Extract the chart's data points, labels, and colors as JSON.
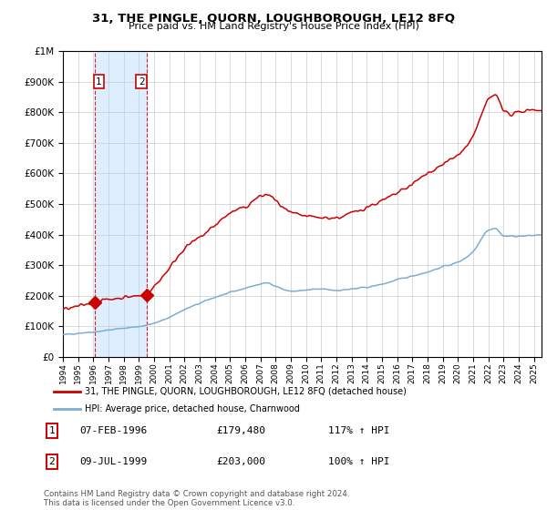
{
  "title": "31, THE PINGLE, QUORN, LOUGHBOROUGH, LE12 8FQ",
  "subtitle": "Price paid vs. HM Land Registry's House Price Index (HPI)",
  "legend_line1": "31, THE PINGLE, QUORN, LOUGHBOROUGH, LE12 8FQ (detached house)",
  "legend_line2": "HPI: Average price, detached house, Charnwood",
  "sale1_date": "07-FEB-1996",
  "sale1_price": 179480,
  "sale1_hpi": "117% ↑ HPI",
  "sale2_date": "09-JUL-1999",
  "sale2_price": 203000,
  "sale2_hpi": "100% ↑ HPI",
  "sale1_x": 1996.09,
  "sale2_x": 1999.52,
  "red_color": "#cc0000",
  "blue_color": "#7aadd4",
  "shade_color": "#ddeeff",
  "grid_color": "#cccccc",
  "bg_color": "#ffffff",
  "ylim": [
    0,
    1000000
  ],
  "xlim": [
    1994.0,
    2025.5
  ],
  "footer": "Contains HM Land Registry data © Crown copyright and database right 2024.\nThis data is licensed under the Open Government Licence v3.0.",
  "blue_pts_x": [
    1994,
    1995,
    1996,
    1997,
    1998,
    1999,
    2000,
    2001,
    2002,
    2003,
    2004,
    2005,
    2006,
    2007,
    2007.5,
    2008,
    2009,
    2010,
    2011,
    2012,
    2013,
    2014,
    2015,
    2016,
    2017,
    2018,
    2019,
    2020,
    2021,
    2022,
    2022.5,
    2023,
    2024,
    2025.5
  ],
  "blue_pts_y": [
    72000,
    78000,
    82000,
    88000,
    94000,
    100000,
    110000,
    130000,
    155000,
    175000,
    195000,
    210000,
    225000,
    238000,
    242000,
    232000,
    215000,
    218000,
    222000,
    218000,
    222000,
    228000,
    238000,
    252000,
    265000,
    278000,
    295000,
    310000,
    345000,
    415000,
    420000,
    395000,
    395000,
    400000
  ],
  "red_pts_x": [
    1994,
    1995,
    1996.09,
    1997,
    1998,
    1999,
    1999.52,
    2000,
    2001,
    2002,
    2003,
    2004,
    2005,
    2006,
    2007,
    2007.5,
    2008,
    2009,
    2010,
    2011,
    2012,
    2013,
    2014,
    2015,
    2016,
    2017,
    2018,
    2019,
    2020,
    2021,
    2022,
    2022.5,
    2023,
    2023.5,
    2024,
    2025,
    2025.5
  ],
  "red_pts_y": [
    155000,
    165000,
    179480,
    188000,
    195000,
    200000,
    203000,
    230000,
    290000,
    355000,
    390000,
    430000,
    470000,
    490000,
    525000,
    530000,
    510000,
    470000,
    460000,
    455000,
    455000,
    470000,
    490000,
    510000,
    535000,
    565000,
    600000,
    630000,
    660000,
    720000,
    840000,
    855000,
    810000,
    790000,
    800000,
    810000,
    800000
  ]
}
